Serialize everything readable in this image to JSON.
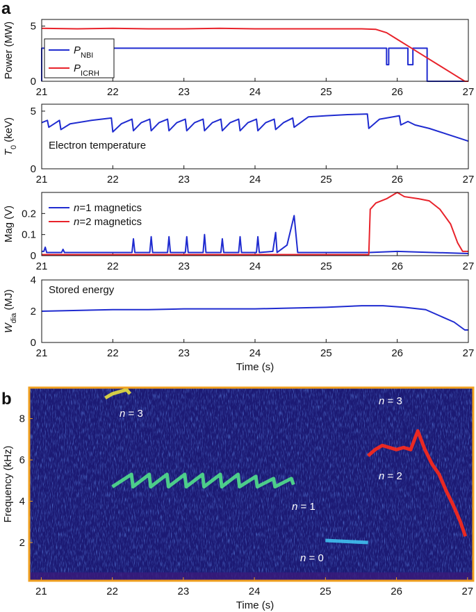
{
  "panel_labels": [
    "a",
    "b"
  ],
  "chart_data": [
    {
      "type": "line",
      "xlim": [
        21,
        27
      ],
      "xticks": [
        21,
        22,
        23,
        24,
        25,
        26,
        27
      ],
      "ylim": [
        0,
        5.6
      ],
      "yticks": [
        0,
        5
      ],
      "ylabel": [
        {
          "text": "Power (MW)",
          "style": "normal"
        }
      ],
      "legend": {
        "corner": "upper left",
        "frame": true,
        "style": "subscript"
      },
      "series": [
        {
          "name": "PNBI",
          "color": "#1f2bd0",
          "x": [
            21,
            21,
            25.85,
            25.85,
            25.88,
            25.88,
            26.15,
            26.15,
            26.22,
            26.22,
            26.42,
            26.42,
            27
          ],
          "values": [
            0,
            3,
            3,
            1.5,
            1.5,
            3,
            3,
            1.5,
            1.5,
            3,
            3,
            0,
            0
          ]
        },
        {
          "name": "PICRH",
          "color": "#e8222a",
          "x": [
            21,
            21.5,
            22,
            22.5,
            23,
            23.5,
            24,
            24.5,
            25,
            25.5,
            25.7,
            25.85,
            26,
            26.2,
            26.4,
            26.6,
            26.8,
            26.95,
            27
          ],
          "values": [
            4.8,
            4.75,
            4.8,
            4.75,
            4.75,
            4.8,
            4.75,
            4.75,
            4.75,
            4.75,
            4.7,
            4.4,
            3.8,
            3.0,
            2.2,
            1.4,
            0.6,
            0,
            0
          ]
        }
      ]
    },
    {
      "type": "line",
      "xlim": [
        21,
        27
      ],
      "xticks": [
        21,
        22,
        23,
        24,
        25,
        26,
        27
      ],
      "ylim": [
        0,
        5.6
      ],
      "yticks": [
        0,
        5
      ],
      "ylabel": [
        {
          "text": "T",
          "style": "italic"
        },
        {
          "text": "0",
          "style": "sub"
        },
        {
          "text": " (keV)",
          "style": "normal"
        }
      ],
      "annotation": "Electron temperature",
      "series": [
        {
          "color": "#1f2bd0",
          "x": [
            21,
            21.08,
            21.1,
            21.2,
            21.25,
            21.27,
            21.4,
            21.7,
            21.98,
            22.0,
            22.12,
            22.27,
            22.29,
            22.4,
            22.52,
            22.54,
            22.65,
            22.77,
            22.79,
            22.9,
            23.02,
            23.04,
            23.15,
            23.27,
            23.29,
            23.4,
            23.52,
            23.54,
            23.65,
            23.77,
            23.79,
            23.9,
            24.02,
            24.04,
            24.15,
            24.27,
            24.29,
            24.4,
            24.53,
            24.55,
            24.75,
            25.0,
            25.3,
            25.58,
            25.6,
            25.75,
            26.03,
            26.05,
            26.15,
            26.25,
            26.45,
            26.7,
            26.9,
            27
          ],
          "values": [
            4.0,
            4.2,
            3.6,
            4.0,
            4.2,
            3.4,
            3.9,
            4.2,
            4.4,
            3.2,
            3.9,
            4.3,
            3.3,
            4.0,
            4.3,
            3.3,
            4.0,
            4.3,
            3.3,
            4.0,
            4.3,
            3.3,
            4.0,
            4.3,
            3.3,
            4.0,
            4.3,
            3.3,
            4.0,
            4.3,
            3.3,
            4.0,
            4.3,
            3.3,
            4.0,
            4.3,
            3.4,
            4.0,
            4.4,
            3.6,
            4.5,
            4.6,
            4.7,
            4.75,
            3.5,
            4.3,
            4.6,
            3.8,
            4.1,
            3.8,
            3.5,
            3.0,
            2.6,
            2.4
          ]
        }
      ]
    },
    {
      "type": "line",
      "xlim": [
        21,
        27
      ],
      "xticks": [
        21,
        22,
        23,
        24,
        25,
        26,
        27
      ],
      "ylim": [
        0,
        0.3
      ],
      "yticks": [
        0,
        0.1,
        0.2
      ],
      "ylabel": [
        {
          "text": "Mag (V)",
          "style": "normal"
        }
      ],
      "legend": {
        "corner": "upper left",
        "frame": false,
        "style": "italic-first"
      },
      "series": [
        {
          "name": "n=1 magnetics",
          "color": "#1f2bd0",
          "x": [
            21,
            21.03,
            21.05,
            21.07,
            21.28,
            21.3,
            21.32,
            22.27,
            22.29,
            22.31,
            22.52,
            22.54,
            22.56,
            22.77,
            22.79,
            22.81,
            23.02,
            23.04,
            23.06,
            23.27,
            23.29,
            23.31,
            23.52,
            23.54,
            23.56,
            23.77,
            23.79,
            23.81,
            24.02,
            24.04,
            24.06,
            24.25,
            24.29,
            24.31,
            24.45,
            24.55,
            24.6,
            25.6,
            26.0,
            26.5,
            27
          ],
          "values": [
            0.02,
            0.02,
            0.04,
            0.015,
            0.015,
            0.03,
            0.015,
            0.015,
            0.08,
            0.015,
            0.015,
            0.09,
            0.015,
            0.015,
            0.09,
            0.015,
            0.015,
            0.09,
            0.015,
            0.015,
            0.1,
            0.015,
            0.015,
            0.08,
            0.015,
            0.015,
            0.09,
            0.015,
            0.015,
            0.09,
            0.015,
            0.02,
            0.11,
            0.015,
            0.05,
            0.19,
            0.015,
            0.015,
            0.02,
            0.015,
            0.01
          ]
        },
        {
          "name": "n=2 magnetics",
          "color": "#e8222a",
          "x": [
            21,
            25.6,
            25.62,
            25.7,
            25.85,
            26.0,
            26.1,
            26.3,
            26.45,
            26.6,
            26.75,
            26.85,
            26.92,
            27
          ],
          "values": [
            0.005,
            0.005,
            0.22,
            0.25,
            0.27,
            0.3,
            0.28,
            0.27,
            0.26,
            0.22,
            0.15,
            0.06,
            0.02,
            0.02
          ]
        }
      ]
    },
    {
      "type": "line",
      "xlim": [
        21,
        27
      ],
      "xticks": [
        21,
        22,
        23,
        24,
        25,
        26,
        27
      ],
      "ylim": [
        0,
        4
      ],
      "yticks": [
        0,
        2,
        4
      ],
      "ylabel": [
        {
          "text": "W",
          "style": "italic"
        },
        {
          "text": "dia",
          "style": "sub"
        },
        {
          "text": " (MJ)",
          "style": "normal"
        }
      ],
      "annotation": "Stored energy",
      "xlabel": "Time (s)",
      "series": [
        {
          "color": "#1f2bd0",
          "x": [
            21,
            21.5,
            22,
            22.5,
            23,
            23.5,
            24,
            24.5,
            25,
            25.5,
            25.8,
            26.1,
            26.4,
            26.6,
            26.8,
            26.95,
            27
          ],
          "values": [
            2.0,
            2.05,
            2.1,
            2.1,
            2.15,
            2.15,
            2.15,
            2.2,
            2.25,
            2.35,
            2.35,
            2.25,
            2.1,
            1.7,
            1.3,
            0.8,
            0.8
          ]
        }
      ]
    },
    {
      "type": "spectrogram",
      "xlim": [
        20.83,
        27.08
      ],
      "xticks": [
        21,
        22,
        23,
        24,
        25,
        26,
        27
      ],
      "ylim": [
        0.15,
        9.5
      ],
      "yticks": [
        2,
        4,
        6,
        8
      ],
      "ylabel": [
        {
          "text": "Frequency (kHz)",
          "style": "normal"
        }
      ],
      "xlabel": "Time (s)",
      "annotations": [
        "n = 3",
        "n = 1",
        "n = 3",
        "n = 2",
        "n = 0"
      ],
      "series": [
        {
          "color": "#52e08c",
          "x": [
            22.0,
            22.27,
            22.29,
            22.52,
            22.54,
            22.77,
            22.79,
            23.02,
            23.04,
            23.27,
            23.29,
            23.52,
            23.54,
            23.77,
            23.79,
            24.02,
            24.04,
            24.27,
            24.29,
            24.52,
            24.55
          ],
          "values": [
            4.7,
            5.3,
            4.7,
            5.3,
            4.7,
            5.3,
            4.7,
            5.3,
            4.7,
            5.3,
            4.7,
            5.3,
            4.7,
            5.3,
            4.7,
            5.2,
            4.7,
            5.1,
            4.7,
            5.1,
            4.8
          ]
        },
        {
          "color": "#e8e040",
          "x": [
            21.9,
            22.0,
            22.1,
            22.2,
            22.25
          ],
          "values": [
            9.0,
            9.2,
            9.3,
            9.4,
            9.2
          ]
        },
        {
          "color": "#ff2a1a",
          "x": [
            25.6,
            25.7,
            25.8,
            25.9,
            26.0,
            26.1,
            26.2,
            26.3,
            26.4,
            26.5,
            26.6,
            26.7,
            26.8,
            26.9,
            26.97
          ],
          "values": [
            6.2,
            6.5,
            6.7,
            6.6,
            6.5,
            6.6,
            6.5,
            7.4,
            6.5,
            5.8,
            5.3,
            4.5,
            3.8,
            3.0,
            2.3
          ]
        },
        {
          "color": "#40c0f0",
          "x": [
            25.0,
            25.6
          ],
          "values": [
            2.1,
            2.0
          ]
        }
      ]
    }
  ]
}
